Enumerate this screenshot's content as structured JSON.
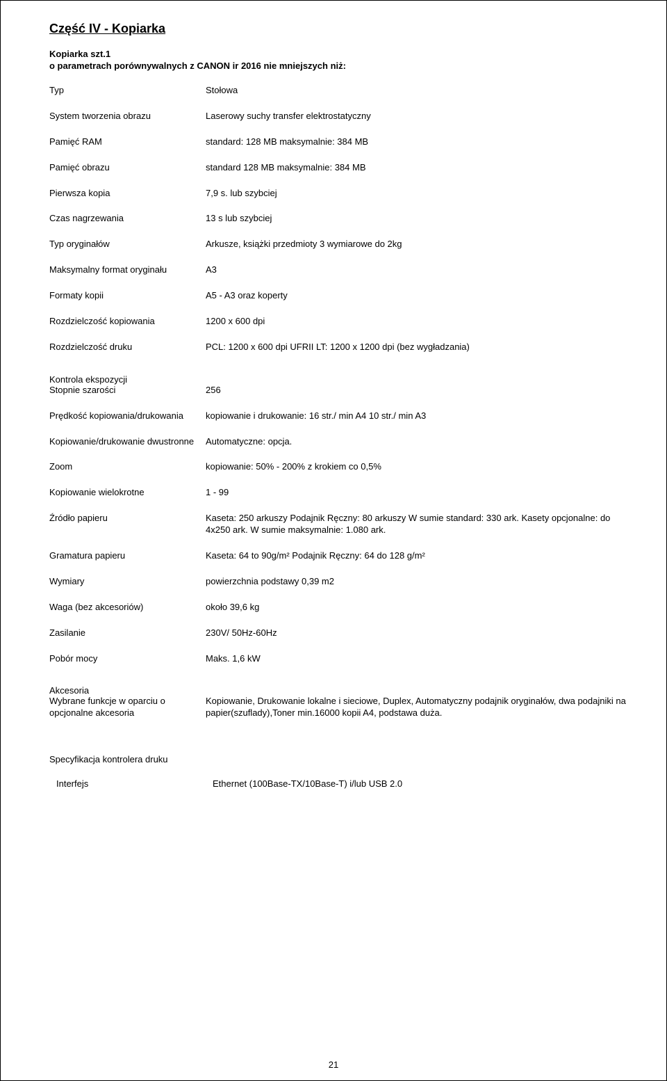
{
  "title": "Część IV - Kopiarka",
  "subheader_l1": "Kopiarka szt.1",
  "subheader_l2": "o parametrach porównywalnych z CANON ir 2016  nie mniejszych niż:",
  "specsA": [
    {
      "label": "Typ",
      "value": "Stołowa"
    },
    {
      "label": "System tworzenia obrazu",
      "value": "Laserowy suchy transfer elektrostatyczny"
    },
    {
      "label": "Pamięć RAM",
      "value": "standard: 128 MB maksymalnie: 384 MB"
    },
    {
      "label": "Pamięć obrazu",
      "value": "standard 128 MB maksymalnie: 384 MB"
    },
    {
      "label": "Pierwsza kopia",
      "value": "7,9 s. lub szybciej"
    },
    {
      "label": "Czas nagrzewania",
      "value": "13 s lub szybciej"
    },
    {
      "label": "Typ oryginałów",
      "value": "Arkusze, książki przedmioty 3 wymiarowe do 2kg"
    },
    {
      "label": "Maksymalny format oryginału",
      "value": "A3"
    },
    {
      "label": "Formaty kopii",
      "value": "A5 - A3 oraz koperty"
    },
    {
      "label": "Rozdzielczość kopiowania",
      "value": "1200 x 600 dpi"
    },
    {
      "label": "Rozdzielczość druku",
      "value": "PCL: 1200 x 600 dpi UFRII LT: 1200 x 1200 dpi (bez wygładzania)"
    }
  ],
  "groupB_header": "Kontrola ekspozycji",
  "specsB": [
    {
      "label": "Stopnie szarości",
      "value": "256"
    },
    {
      "label": "Prędkość kopiowania/drukowania",
      "value": "kopiowanie i drukowanie: 16 str./ min A4 10 str./ min A3"
    },
    {
      "label": "Kopiowanie/drukowanie dwustronne",
      "value": "Automatyczne: opcja."
    },
    {
      "label": "Zoom",
      "value": "kopiowanie: 50% - 200% z krokiem co 0,5%"
    },
    {
      "label": "Kopiowanie wielokrotne",
      "value": "1 - 99"
    },
    {
      "label": "Źródło papieru",
      "value": "Kaseta: 250 arkuszy Podajnik Ręczny: 80 arkuszy W sumie standard: 330 ark. Kasety opcjonalne: do 4x250 ark. W sumie maksymalnie: 1.080 ark."
    },
    {
      "label": "Gramatura papieru",
      "value": "Kaseta: 64 to 90g/m² Podajnik Ręczny: 64 do 128 g/m²"
    },
    {
      "label": "Wymiary",
      "value": "powierzchnia podstawy 0,39 m2"
    },
    {
      "label": "Waga (bez akcesoriów)",
      "value": "około 39,6 kg"
    },
    {
      "label": "Zasilanie",
      "value": "230V/ 50Hz-60Hz"
    },
    {
      "label": "Pobór mocy",
      "value": "Maks. 1,6 kW"
    }
  ],
  "groupC_header": "Akcesoria",
  "specsC": [
    {
      "label": "Wybrane funkcje w oparciu o opcjonalne akcesoria",
      "value": "Kopiowanie, Drukowanie lokalne i sieciowe, Duplex, Automatyczny podajnik oryginałów, dwa podajniki na papier(szuflady),Toner min.16000 kopii A4, podstawa duża."
    }
  ],
  "groupD_header": "Specyfikacja kontrolera druku",
  "specsD": [
    {
      "label": "Interfejs",
      "value": "Ethernet (100Base-TX/10Base-T) i/lub USB 2.0"
    }
  ],
  "page_number": "21"
}
